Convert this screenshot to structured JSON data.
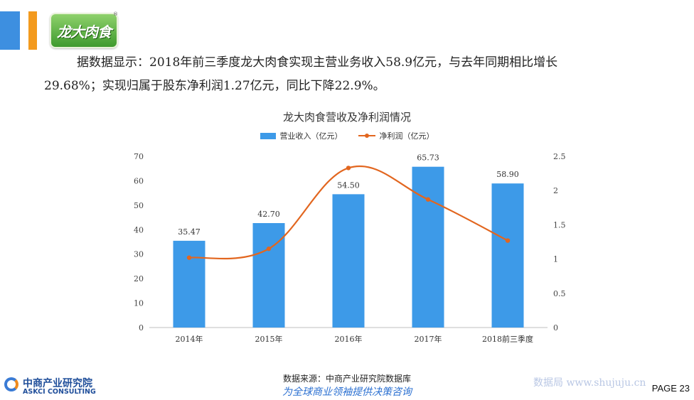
{
  "brand": {
    "logo_text": "龙大肉食",
    "registered_mark": "®"
  },
  "paragraph": {
    "line1": "据数据显示：2018年前三季度龙大肉食实现主营业务收入58.9亿元，与去年同期相比增长",
    "line2": "29.68%；实现归属于股东净利润1.27亿元，同比下降22.9%。"
  },
  "chart_data": {
    "type": "bar+line",
    "title": "龙大肉食营收及净利润情况",
    "categories": [
      "2014年",
      "2015年",
      "2016年",
      "2017年",
      "2018前三季度"
    ],
    "series": [
      {
        "name": "营业收入（亿元）",
        "type": "bar",
        "axis": "left",
        "values": [
          35.47,
          42.7,
          54.5,
          65.73,
          58.9
        ],
        "labels": [
          "35.47",
          "42.70",
          "54.50",
          "65.73",
          "58.90"
        ],
        "color": "#3d9ae8"
      },
      {
        "name": "净利润（亿元）",
        "type": "line",
        "axis": "right",
        "values": [
          1.02,
          1.15,
          2.33,
          1.87,
          1.27
        ],
        "color": "#e2661f"
      }
    ],
    "y_left": {
      "lim": [
        0,
        70
      ],
      "ticks": [
        "0",
        "10",
        "20",
        "30",
        "40",
        "50",
        "60",
        "70"
      ]
    },
    "y_right": {
      "lim": [
        0,
        2.5
      ],
      "ticks": [
        "0",
        "0.5",
        "1",
        "1.5",
        "2",
        "2.5"
      ]
    },
    "grid": false,
    "legend_position": "top"
  },
  "footer": {
    "logo_cn": "中商产业研究院",
    "logo_en": "ASKCI CONSULTING",
    "source": "数据来源：中商产业研究院数据库",
    "slogan": "为全球商业领袖提供决策咨询",
    "watermark": "数据局 www.shujuju.cn",
    "page": "PAGE 23"
  },
  "colors": {
    "deco_blue": "#3d8fe0",
    "deco_orange": "#f39a1e",
    "bar": "#3d9ae8",
    "line": "#e2661f",
    "slogan": "#2a6fd1"
  }
}
